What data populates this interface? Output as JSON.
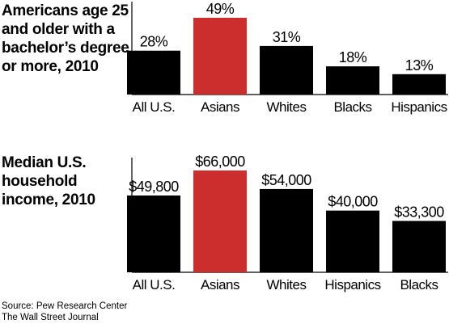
{
  "chart_data": [
    {
      "type": "bar",
      "title": "Americans age 25 and older with a bachelor’s degree or more, 2010",
      "categories": [
        "All U.S.",
        "Asians",
        "Whites",
        "Blacks",
        "Hispanics"
      ],
      "values": [
        28,
        49,
        31,
        18,
        13
      ],
      "value_labels": [
        "28%",
        "49%",
        "31%",
        "18%",
        "13%"
      ],
      "highlight_index": 1,
      "ylim": [
        0,
        49
      ],
      "grid": false,
      "colors": {
        "bar": "#000000",
        "highlight": "#cc2e2e"
      }
    },
    {
      "type": "bar",
      "title": "Median U.S. household income, 2010",
      "categories": [
        "All U.S.",
        "Asians",
        "Whites",
        "Hispanics",
        "Blacks"
      ],
      "values": [
        49800,
        66000,
        54000,
        40000,
        33300
      ],
      "value_labels": [
        "$49,800",
        "$66,000",
        "$54,000",
        "$40,000",
        "$33,300"
      ],
      "highlight_index": 1,
      "ylim": [
        0,
        66000
      ],
      "grid": false,
      "colors": {
        "bar": "#000000",
        "highlight": "#cc2e2e"
      }
    }
  ],
  "source": {
    "line1": "Source: Pew Research Center",
    "line2": "The Wall Street Journal"
  }
}
